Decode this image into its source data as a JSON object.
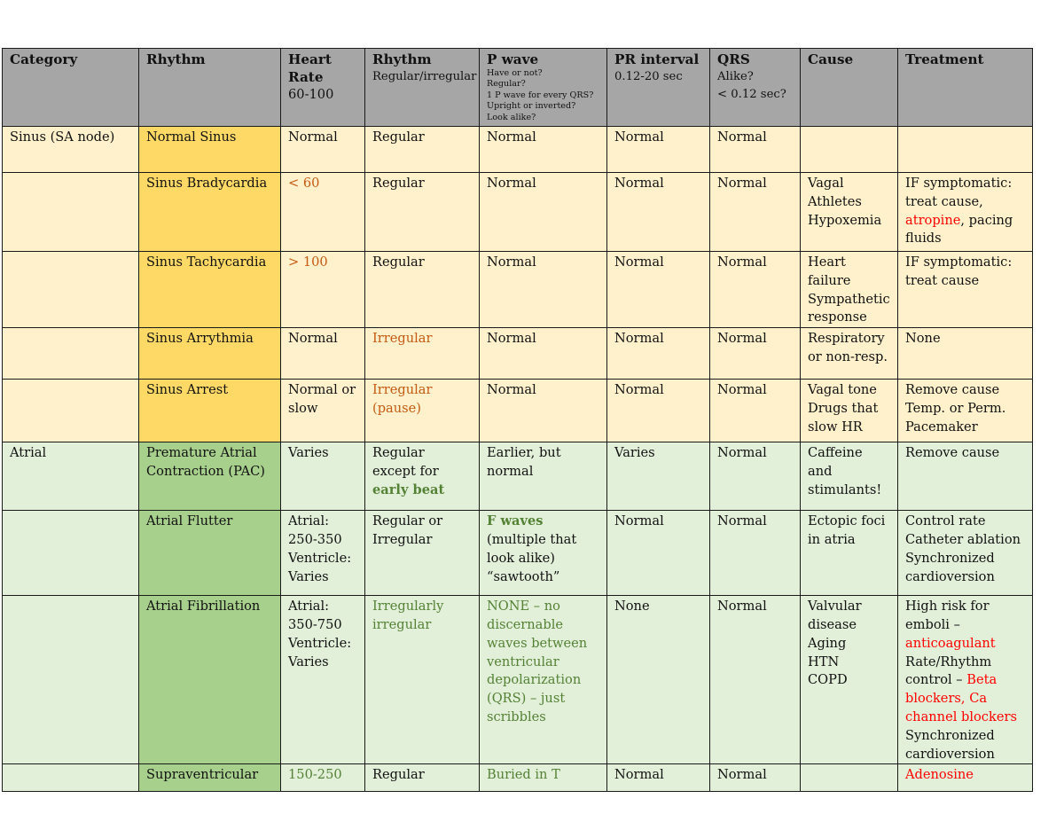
{
  "headers": {
    "category": {
      "main": "Category"
    },
    "rhythm": {
      "main": "Rhythm"
    },
    "heart_rate": {
      "main": "Heart Rate",
      "sub": "60-100"
    },
    "rhythm_reg": {
      "main": "Rhythm",
      "sub": "Regular/irregular"
    },
    "p_wave": {
      "main": "P wave",
      "sub_lines": [
        "Have or not?",
        "Regular?",
        "1 P wave for every QRS?",
        "Upright or inverted?",
        "Look alike?"
      ]
    },
    "pr_interval": {
      "main": "PR interval",
      "sub": "0.12-20 sec"
    },
    "qrs": {
      "main": "QRS",
      "sub1": "Alike?",
      "sub2": "< 0.12 sec?"
    },
    "cause": {
      "main": "Cause"
    },
    "treatment": {
      "main": "Treatment"
    }
  },
  "rows": [
    {
      "category": "Sinus (SA node)",
      "rhythm": "Normal Sinus",
      "heart_rate": "Normal",
      "regularity": "Regular",
      "p_wave": "Normal",
      "pr": "Normal",
      "qrs": "Normal",
      "cause": "",
      "treatment": ""
    },
    {
      "category": "",
      "rhythm": "Sinus Bradycardia",
      "heart_rate": "< 60",
      "regularity": "Regular",
      "p_wave": "Normal",
      "pr": "Normal",
      "qrs": "Normal",
      "cause_lines": [
        "Vagal",
        "Athletes",
        "Hypoxemia"
      ],
      "treatment": {
        "a": "IF symptomatic: treat cause,",
        "red": "atropine",
        "b": ", pacing fluids"
      }
    },
    {
      "category": "",
      "rhythm": "Sinus Tachycardia",
      "heart_rate": "> 100",
      "regularity": "Regular",
      "p_wave": "Normal",
      "pr": "Normal",
      "qrs": "Normal",
      "cause_lines": [
        "Heart failure",
        "Sympathetic response"
      ],
      "treatment": "IF symptomatic: treat cause"
    },
    {
      "category": "",
      "rhythm": "Sinus Arrythmia",
      "heart_rate": "Normal",
      "regularity": "Irregular",
      "p_wave": "Normal",
      "pr": "Normal",
      "qrs": "Normal",
      "cause": "Respiratory or non-resp.",
      "treatment": "None"
    },
    {
      "category": "",
      "rhythm": "Sinus Arrest",
      "heart_rate": "Normal or slow",
      "regularity": "Irregular (pause)",
      "p_wave": "Normal",
      "pr": "Normal",
      "qrs": "Normal",
      "cause_lines": [
        "Vagal tone",
        "Drugs that slow HR"
      ],
      "treatment_lines": [
        "Remove cause",
        "Temp. or Perm. Pacemaker"
      ]
    },
    {
      "category": "Atrial",
      "rhythm": "Premature Atrial Contraction (PAC)",
      "heart_rate": "Varies",
      "regularity": {
        "a": "Regular except for ",
        "green": "early beat"
      },
      "p_wave": "Earlier, but normal",
      "pr": "Varies",
      "qrs": "Normal",
      "cause": "Caffeine and stimulants!",
      "treatment": "Remove cause"
    },
    {
      "category": "",
      "rhythm": "Atrial Flutter",
      "heart_rate_lines": [
        "Atrial:",
        "250-350",
        "Ventricle:",
        "Varies"
      ],
      "regularity": "Regular or Irregular",
      "p_wave": {
        "green": "F waves",
        "rest": "(multiple that look alike) “sawtooth”"
      },
      "pr": "Normal",
      "qrs": "Normal",
      "cause": "Ectopic foci in atria",
      "treatment_lines": [
        "Control rate",
        "Catheter ablation",
        "Synchronized cardioversion"
      ]
    },
    {
      "category": "",
      "rhythm": "Atrial Fibrillation",
      "heart_rate_lines": [
        "Atrial:",
        "350-750",
        "Ventricle:",
        "Varies"
      ],
      "regularity": "Irregularly irregular",
      "p_wave": "NONE – no discernable waves between ventricular depolarization (QRS) – just scribbles",
      "pr": "None",
      "qrs": "Normal",
      "cause_lines": [
        "Valvular disease",
        "Aging",
        "HTN",
        "COPD"
      ],
      "treatment": {
        "a": "High risk for emboli –",
        "red1": "anticoagulant",
        "b": "Rate/Rhythm control –",
        "red2": "Beta blockers, Ca channel blockers",
        "c": "Synchronized cardioversion"
      }
    },
    {
      "category": "",
      "rhythm": "Supraventricular",
      "heart_rate": "150-250",
      "regularity": "Regular",
      "p_wave": "Buried in T",
      "pr": "Normal",
      "qrs": "Normal",
      "cause": "",
      "treatment": "Adenosine"
    }
  ],
  "colors": {
    "header_bg": "#a6a6a6",
    "sinus_bg": "#fff1cc",
    "sinus_name_bg": "#ffd966",
    "atrial_bg": "#e2efd9",
    "atrial_name_bg": "#a8d08d",
    "orange_text": "#c55a11",
    "green_text": "#548235",
    "red_text": "#ff0000"
  }
}
